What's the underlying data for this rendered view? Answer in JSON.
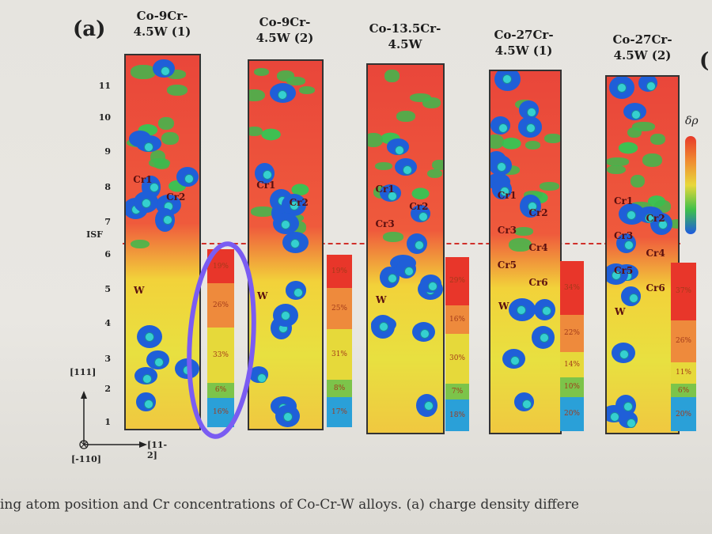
{
  "figure": {
    "panel_label": "(a)",
    "next_panel_label": "(",
    "isf_label": "ISF",
    "y_ticks": [
      "11",
      "10",
      "9",
      "8",
      "7",
      "6",
      "5",
      "4",
      "3",
      "2",
      "1"
    ],
    "axes": {
      "up": "[111]",
      "right": "[11-2]",
      "out": "[-110]"
    },
    "colorbar_label": "δρ",
    "panels": [
      {
        "title_line1": "Co-9Cr-",
        "title_line2": "4.5W (1)",
        "atom_labels": [
          "Cr1",
          "Cr2",
          "W"
        ],
        "concentrations": [
          "19%",
          "26%",
          "33%",
          "6%",
          "16%"
        ]
      },
      {
        "title_line1": "Co-9Cr-",
        "title_line2": "4.5W (2)",
        "atom_labels": [
          "Cr1",
          "Cr2",
          "W"
        ],
        "concentrations": [
          "19%",
          "25%",
          "31%",
          "8%",
          "17%"
        ]
      },
      {
        "title_line1": "Co-13.5Cr-",
        "title_line2": "4.5W",
        "atom_labels": [
          "Cr1",
          "Cr2",
          "Cr3",
          "W"
        ],
        "concentrations": [
          "29%",
          "16%",
          "30%",
          "7%",
          "18%"
        ]
      },
      {
        "title_line1": "Co-27Cr-",
        "title_line2": "4.5W (1)",
        "atom_labels": [
          "Cr1",
          "Cr2",
          "Cr3",
          "Cr4",
          "Cr5",
          "Cr6",
          "W"
        ],
        "concentrations": [
          "34%",
          "22%",
          "14%",
          "10%",
          "20%"
        ]
      },
      {
        "title_line1": "Co-27Cr-",
        "title_line2": "4.5W (2)",
        "atom_labels": [
          "Cr1",
          "Cr2",
          "Cr3",
          "Cr4",
          "Cr5",
          "Cr6",
          "W"
        ],
        "concentrations": [
          "37%",
          "26%",
          "11%",
          "6%",
          "20%"
        ]
      }
    ],
    "segment_colors": [
      "#e8362a",
      "#ee8a3c",
      "#e6d93a",
      "#7cc44a",
      "#2aa0d8"
    ],
    "annotation_color": "#7a5cf2"
  },
  "caption": "ing atom position and Cr concentrations of Co-Cr-W alloys. (a) charge density differe"
}
